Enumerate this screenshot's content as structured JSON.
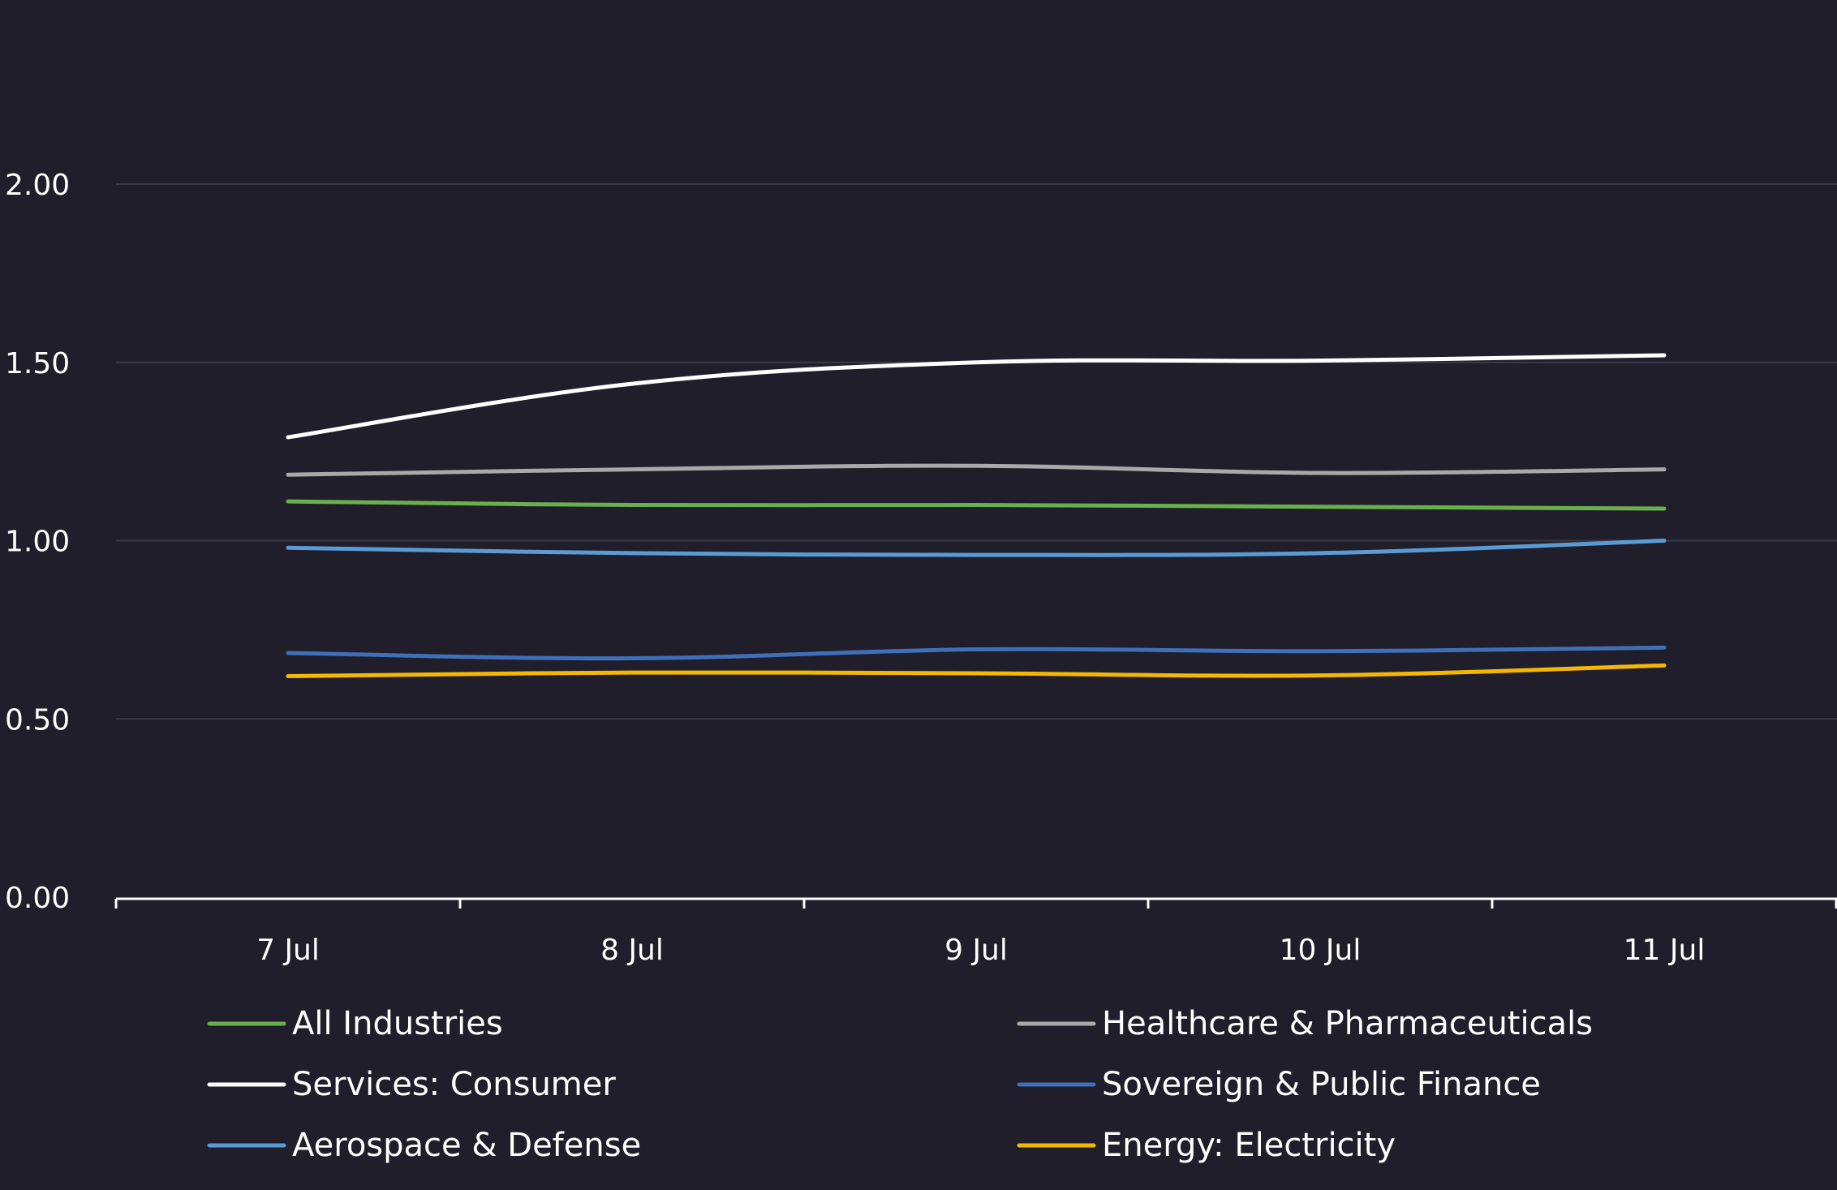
{
  "chart_data": {
    "type": "line",
    "title": "",
    "xlabel": "",
    "ylabel": "",
    "categories": [
      "7 Jul",
      "8 Jul",
      "9 Jul",
      "10 Jul",
      "11 Jul"
    ],
    "ylim": [
      0,
      2.0
    ],
    "yticks": [
      "0.00",
      "0.50",
      "1.00",
      "1.50",
      "2.00"
    ],
    "ytick_values": [
      0,
      0.5,
      1.0,
      1.5,
      2.0
    ],
    "grid": true,
    "legend_position": "bottom",
    "series": [
      {
        "name": "All Industries",
        "color": "#6ab04c",
        "values": [
          1.11,
          1.1,
          1.1,
          1.095,
          1.09
        ]
      },
      {
        "name": "Healthcare & Pharmaceuticals",
        "color": "#a9a9a9",
        "values": [
          1.185,
          1.2,
          1.21,
          1.19,
          1.2
        ]
      },
      {
        "name": "Services: Consumer",
        "color": "#ffffff",
        "values": [
          1.29,
          1.44,
          1.5,
          1.505,
          1.52
        ]
      },
      {
        "name": "Sovereign & Public Finance",
        "color": "#3f6fb8",
        "values": [
          0.685,
          0.67,
          0.695,
          0.69,
          0.7
        ]
      },
      {
        "name": "Aerospace & Defense",
        "color": "#5b9bd5",
        "values": [
          0.98,
          0.965,
          0.96,
          0.965,
          1.0
        ]
      },
      {
        "name": "Energy: Electricity",
        "color": "#f5b800",
        "values": [
          0.62,
          0.63,
          0.628,
          0.622,
          0.65
        ]
      }
    ]
  },
  "colors": {
    "background": "#1f1e2a",
    "grid": "#3a3946",
    "axis": "#ffffff",
    "text": "#ffffff"
  }
}
